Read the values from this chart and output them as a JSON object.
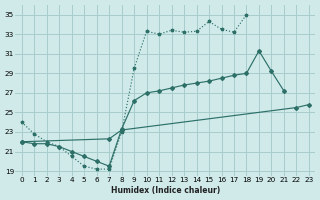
{
  "xlabel": "Humidex (Indice chaleur)",
  "bg_color": "#d0eaea",
  "grid_color": "#a8cccc",
  "line_color": "#2d7068",
  "xlim": [
    -0.5,
    23.5
  ],
  "ylim": [
    18.5,
    36.0
  ],
  "yticks": [
    19,
    21,
    23,
    25,
    27,
    29,
    31,
    33,
    35
  ],
  "xticks": [
    0,
    1,
    2,
    3,
    4,
    5,
    6,
    7,
    8,
    9,
    10,
    11,
    12,
    13,
    14,
    15,
    16,
    17,
    18,
    19,
    20,
    21,
    22,
    23
  ],
  "line1_x": [
    0,
    1,
    2,
    3,
    4,
    5,
    6,
    7,
    8,
    9,
    10,
    11,
    12,
    13,
    14,
    15,
    16,
    17,
    18
  ],
  "line1_y": [
    24.0,
    22.8,
    22.0,
    21.5,
    20.5,
    19.5,
    19.2,
    19.2,
    23.0,
    29.5,
    33.3,
    33.0,
    33.4,
    33.2,
    33.3,
    34.3,
    33.5,
    33.2,
    35.0
  ],
  "line2_x": [
    0,
    7,
    8,
    22,
    23
  ],
  "line2_y": [
    22.0,
    22.3,
    23.2,
    25.5,
    25.8
  ],
  "line3_x": [
    0,
    1,
    2,
    3,
    4,
    5,
    6,
    7,
    8,
    9,
    10,
    11,
    12,
    13,
    14,
    15,
    16,
    17,
    18,
    19,
    20,
    21,
    22,
    23
  ],
  "line3_y": [
    22.0,
    21.8,
    21.8,
    21.5,
    21.0,
    20.5,
    20.0,
    19.5,
    23.3,
    26.2,
    27.0,
    27.2,
    27.5,
    27.8,
    28.0,
    28.2,
    28.5,
    28.8,
    29.0,
    31.3,
    29.2,
    27.2,
    null,
    null
  ]
}
